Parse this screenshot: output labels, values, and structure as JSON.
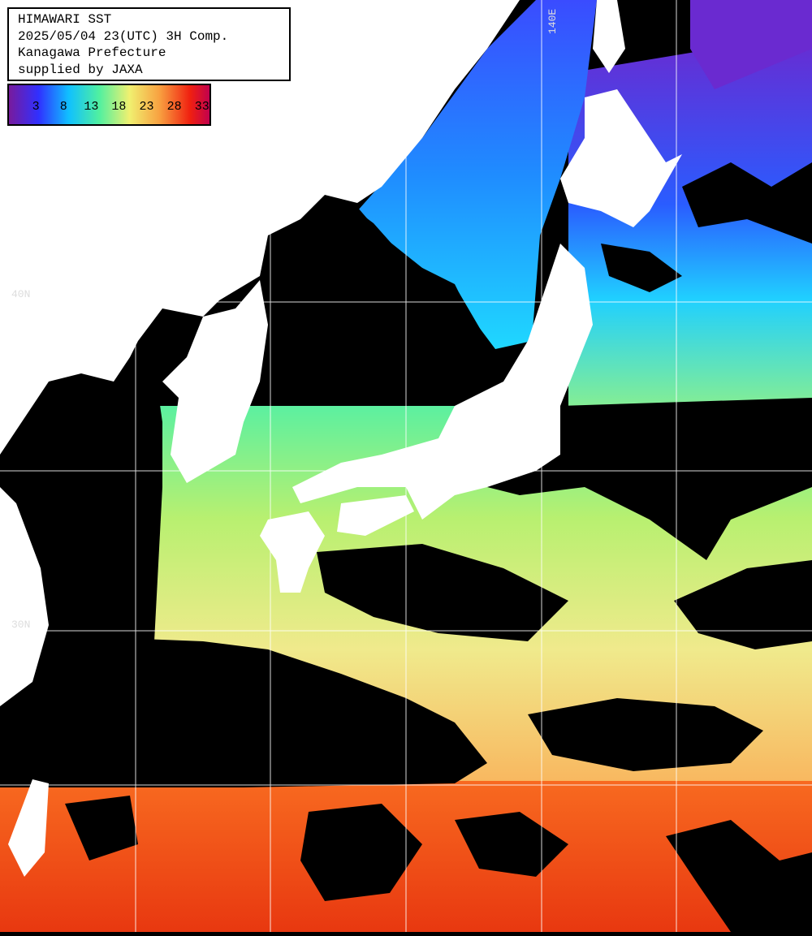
{
  "header": {
    "lines": [
      "HIMAWARI SST",
      "2025/05/04 23(UTC) 3H Comp.",
      "Kanagawa Prefecture",
      "supplied by JAXA"
    ]
  },
  "colorbar": {
    "lim": [
      -2,
      34.5
    ],
    "ticks": [
      3,
      8,
      13,
      18,
      23,
      28,
      33
    ]
  },
  "grid_labels": {
    "lat": [
      "40N",
      "30N"
    ],
    "lon": [
      "140E"
    ]
  }
}
